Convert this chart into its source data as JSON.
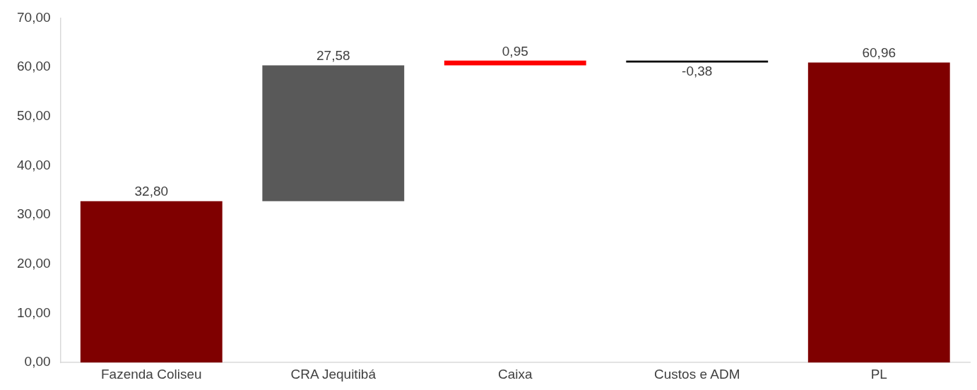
{
  "chart_data": {
    "type": "bar",
    "categories": [
      "Fazenda Coliseu",
      "CRA Jequitibá",
      "Caixa",
      "Custos e ADM",
      "PL"
    ],
    "values": [
      32.8,
      27.58,
      0.95,
      -0.38,
      60.96
    ],
    "base": [
      0,
      32.8,
      60.38,
      61.33,
      0
    ],
    "colors": [
      "#7f0000",
      "#595959",
      "#ff0000",
      "#000000",
      "#7f0000"
    ],
    "value_labels": [
      "32,80",
      "27,58",
      "0,95",
      "-0,38",
      "60,96"
    ],
    "ylim": [
      0,
      70
    ],
    "yticks": [
      {
        "value": 0,
        "label": "0,00"
      },
      {
        "value": 10,
        "label": "10,00"
      },
      {
        "value": 20,
        "label": "20,00"
      },
      {
        "value": 30,
        "label": "30,00"
      },
      {
        "value": 40,
        "label": "40,00"
      },
      {
        "value": 50,
        "label": "50,00"
      },
      {
        "value": 60,
        "label": "60,00"
      },
      {
        "value": 70,
        "label": "70,00"
      }
    ],
    "grid": false,
    "legend": false
  }
}
